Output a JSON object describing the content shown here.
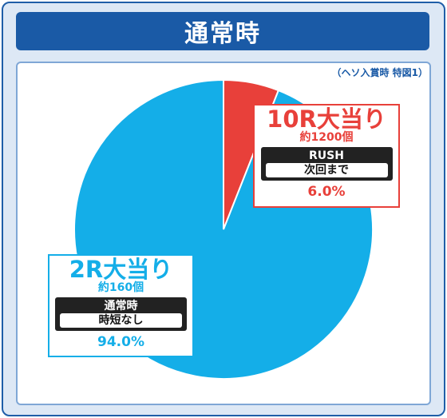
{
  "header": {
    "title": "通常時"
  },
  "note": "（ヘソ入賞時 特図1）",
  "colors": {
    "frame": "#1f5ea8",
    "banner": "#1a5aa6",
    "red": "#e8403a",
    "blue": "#14aee8"
  },
  "chart_data": {
    "type": "pie",
    "slices": [
      {
        "label": "10R大当り",
        "count": "約1200個",
        "mode": "RUSH",
        "mode_detail": "次回まで",
        "value": 6.0,
        "percent_label": "6.0%",
        "color": "#e8403a"
      },
      {
        "label": "2R大当り",
        "count": "約160個",
        "mode": "通常時",
        "mode_detail": "時短なし",
        "value": 94.0,
        "percent_label": "94.0%",
        "color": "#14aee8"
      }
    ]
  }
}
